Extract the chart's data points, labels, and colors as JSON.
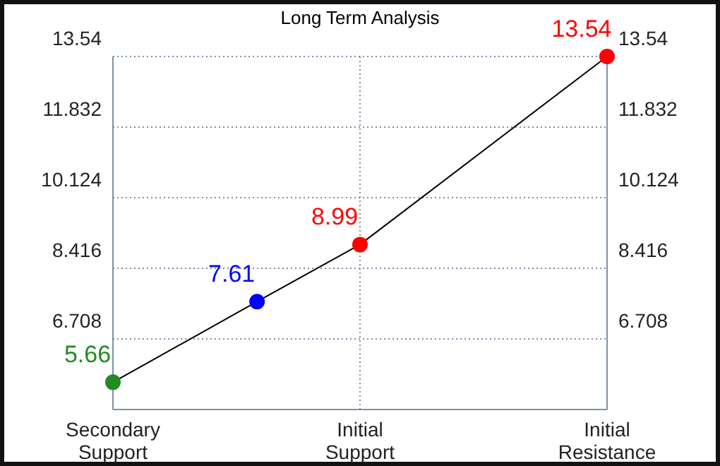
{
  "chart_data": {
    "type": "line",
    "title": "Long Term Analysis",
    "categories": [
      "Secondary\nSupport",
      null,
      null,
      null,
      null,
      null,
      null,
      null,
      null,
      null,
      null,
      null,
      "Initial\nSupport",
      null,
      null,
      null,
      null,
      null,
      null,
      null,
      null,
      null,
      null,
      null,
      "Initial\nResistance"
    ],
    "series": [
      {
        "color": "#000000",
        "colors": [
          "#228b22",
          null,
          null,
          null,
          null,
          null,
          null,
          "#0000ff",
          null,
          null,
          null,
          null,
          "#ff0000",
          null,
          null,
          null,
          null,
          null,
          null,
          null,
          null,
          null,
          null,
          null,
          "#ff0000"
        ],
        "values": [
          5.66,
          null,
          null,
          null,
          null,
          null,
          null,
          7.61,
          null,
          null,
          null,
          null,
          8.99,
          null,
          null,
          null,
          null,
          null,
          null,
          null,
          null,
          null,
          null,
          null,
          13.54
        ]
      }
    ],
    "ylim": [
      5,
      13.54
    ],
    "yticks": [
      6.708,
      8.416,
      10.124,
      11.832,
      13.54
    ],
    "y2lim": [
      5,
      13.54
    ],
    "y2ticks": [
      6.708,
      8.416,
      10.124,
      11.832,
      13.54
    ],
    "grid": true,
    "marker": "circle",
    "data_labels": true
  }
}
